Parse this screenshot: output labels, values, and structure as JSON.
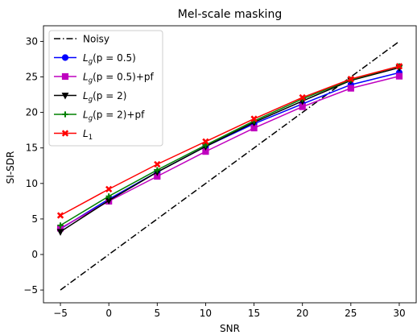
{
  "chart_data": {
    "type": "line",
    "title": "Mel-scale masking",
    "xlabel": "SNR",
    "ylabel": "SI-SDR",
    "xlim": [
      -6.75,
      31.75
    ],
    "ylim": [
      -6.8,
      32.2
    ],
    "xticks": [
      -5,
      0,
      5,
      10,
      15,
      20,
      25,
      30
    ],
    "yticks": [
      -5,
      0,
      5,
      10,
      15,
      20,
      25,
      30
    ],
    "xtick_labels": [
      "−5",
      "0",
      "5",
      "10",
      "15",
      "20",
      "25",
      "30"
    ],
    "ytick_labels": [
      "−5",
      "0",
      "5",
      "10",
      "15",
      "20",
      "25",
      "30"
    ],
    "grid": false,
    "legend_position": "top-left",
    "x": [
      -5,
      0,
      5,
      10,
      15,
      20,
      25,
      30
    ],
    "series": [
      {
        "key": "noisy",
        "legend": {
          "main": "Noisy",
          "sub": "",
          "args": "",
          "suffix": ""
        },
        "color": "#000000",
        "dash": "dashdot",
        "marker": "none",
        "values": [
          -5,
          0,
          5,
          10,
          15,
          20,
          25,
          30
        ]
      },
      {
        "key": "lg05",
        "legend": {
          "main": "L",
          "sub": "g",
          "args": "(p = 0.5)",
          "suffix": ""
        },
        "color": "#0000ff",
        "dash": "solid",
        "marker": "circle",
        "values": [
          3.6,
          7.8,
          11.6,
          15.2,
          18.4,
          21.2,
          23.9,
          25.6
        ]
      },
      {
        "key": "lg05pf",
        "legend": {
          "main": "L",
          "sub": "g",
          "args": "(p = 0.5)",
          "suffix": "+pf"
        },
        "color": "#bf00bf",
        "dash": "solid",
        "marker": "square",
        "values": [
          3.7,
          7.5,
          11.0,
          14.5,
          17.8,
          20.8,
          23.4,
          25.1
        ]
      },
      {
        "key": "lg2",
        "legend": {
          "main": "L",
          "sub": "g",
          "args": "(p = 2)",
          "suffix": ""
        },
        "color": "#000000",
        "dash": "solid",
        "marker": "triangle-down",
        "values": [
          3.2,
          7.6,
          11.6,
          15.2,
          18.6,
          21.6,
          24.5,
          26.3
        ]
      },
      {
        "key": "lg2pf",
        "legend": {
          "main": "L",
          "sub": "g",
          "args": "(p = 2)",
          "suffix": "+pf"
        },
        "color": "#008000",
        "dash": "solid",
        "marker": "plus",
        "values": [
          4.1,
          8.2,
          11.9,
          15.4,
          18.8,
          21.9,
          24.6,
          26.5
        ]
      },
      {
        "key": "l1",
        "legend": {
          "main": "L",
          "sub": "1",
          "args": "",
          "suffix": ""
        },
        "color": "#ff0000",
        "dash": "solid",
        "marker": "x",
        "values": [
          5.5,
          9.2,
          12.7,
          15.9,
          19.1,
          22.1,
          24.7,
          26.5
        ]
      }
    ]
  }
}
